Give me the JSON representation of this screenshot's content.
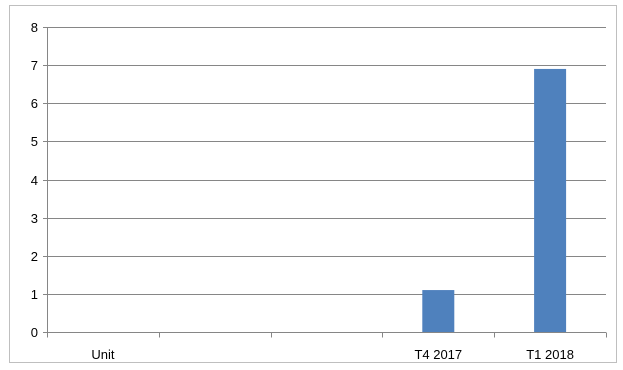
{
  "chart_data": {
    "type": "bar",
    "categories": [
      "Unit",
      "",
      "",
      "T4 2017",
      "T1 2018"
    ],
    "values": [
      0,
      0,
      0,
      1.1,
      6.9
    ],
    "title": "",
    "xlabel": "",
    "ylabel": "",
    "ylim": [
      0,
      8
    ],
    "yticks": [
      "0",
      "1",
      "2",
      "3",
      "4",
      "5",
      "6",
      "7",
      "8"
    ],
    "grid": true,
    "legend": "none",
    "bar_color": "#4f81bd",
    "grid_color": "#868686"
  }
}
